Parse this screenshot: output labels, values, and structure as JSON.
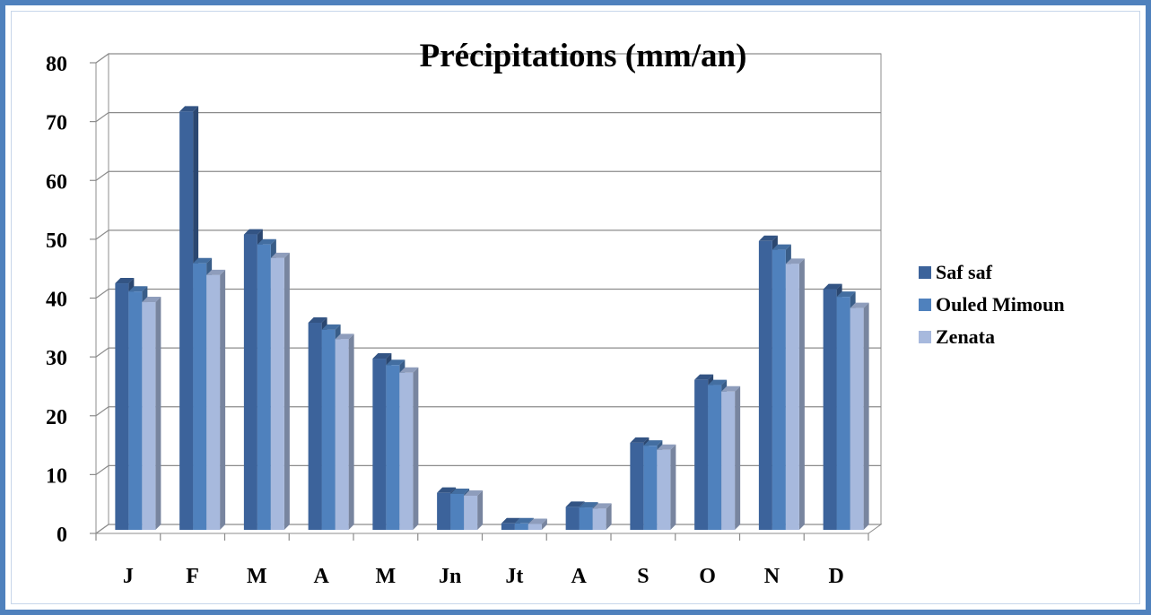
{
  "chart_data": {
    "type": "bar",
    "title": "Précipitations (mm/an)",
    "xlabel": "",
    "ylabel": "",
    "categories": [
      "J",
      "F",
      "M",
      "A",
      "M",
      "Jn",
      "Jt",
      "A",
      "S",
      "O",
      "N",
      "D"
    ],
    "series": [
      {
        "name": "Saf saf",
        "color": "#3c639b",
        "values": [
          41.9,
          71.1,
          50.2,
          35.2,
          29.1,
          6.3,
          1.1,
          3.9,
          14.8,
          25.5,
          49.1,
          40.9
        ]
      },
      {
        "name": "Ouled Mimoun",
        "color": "#4f81bd",
        "values": [
          40.5,
          45.3,
          48.5,
          34.0,
          28.0,
          6.1,
          1.1,
          3.8,
          14.3,
          24.6,
          47.6,
          39.6
        ]
      },
      {
        "name": "Zenata",
        "color": "#a7b9dd",
        "values": [
          38.7,
          43.3,
          46.2,
          32.4,
          26.7,
          5.8,
          1.0,
          3.6,
          13.6,
          23.5,
          45.2,
          37.7
        ]
      }
    ],
    "ylim": [
      0,
      80
    ],
    "yticks": [
      0,
      10,
      20,
      30,
      40,
      50,
      60,
      70,
      80
    ],
    "grid": true,
    "legend_position": "right"
  }
}
